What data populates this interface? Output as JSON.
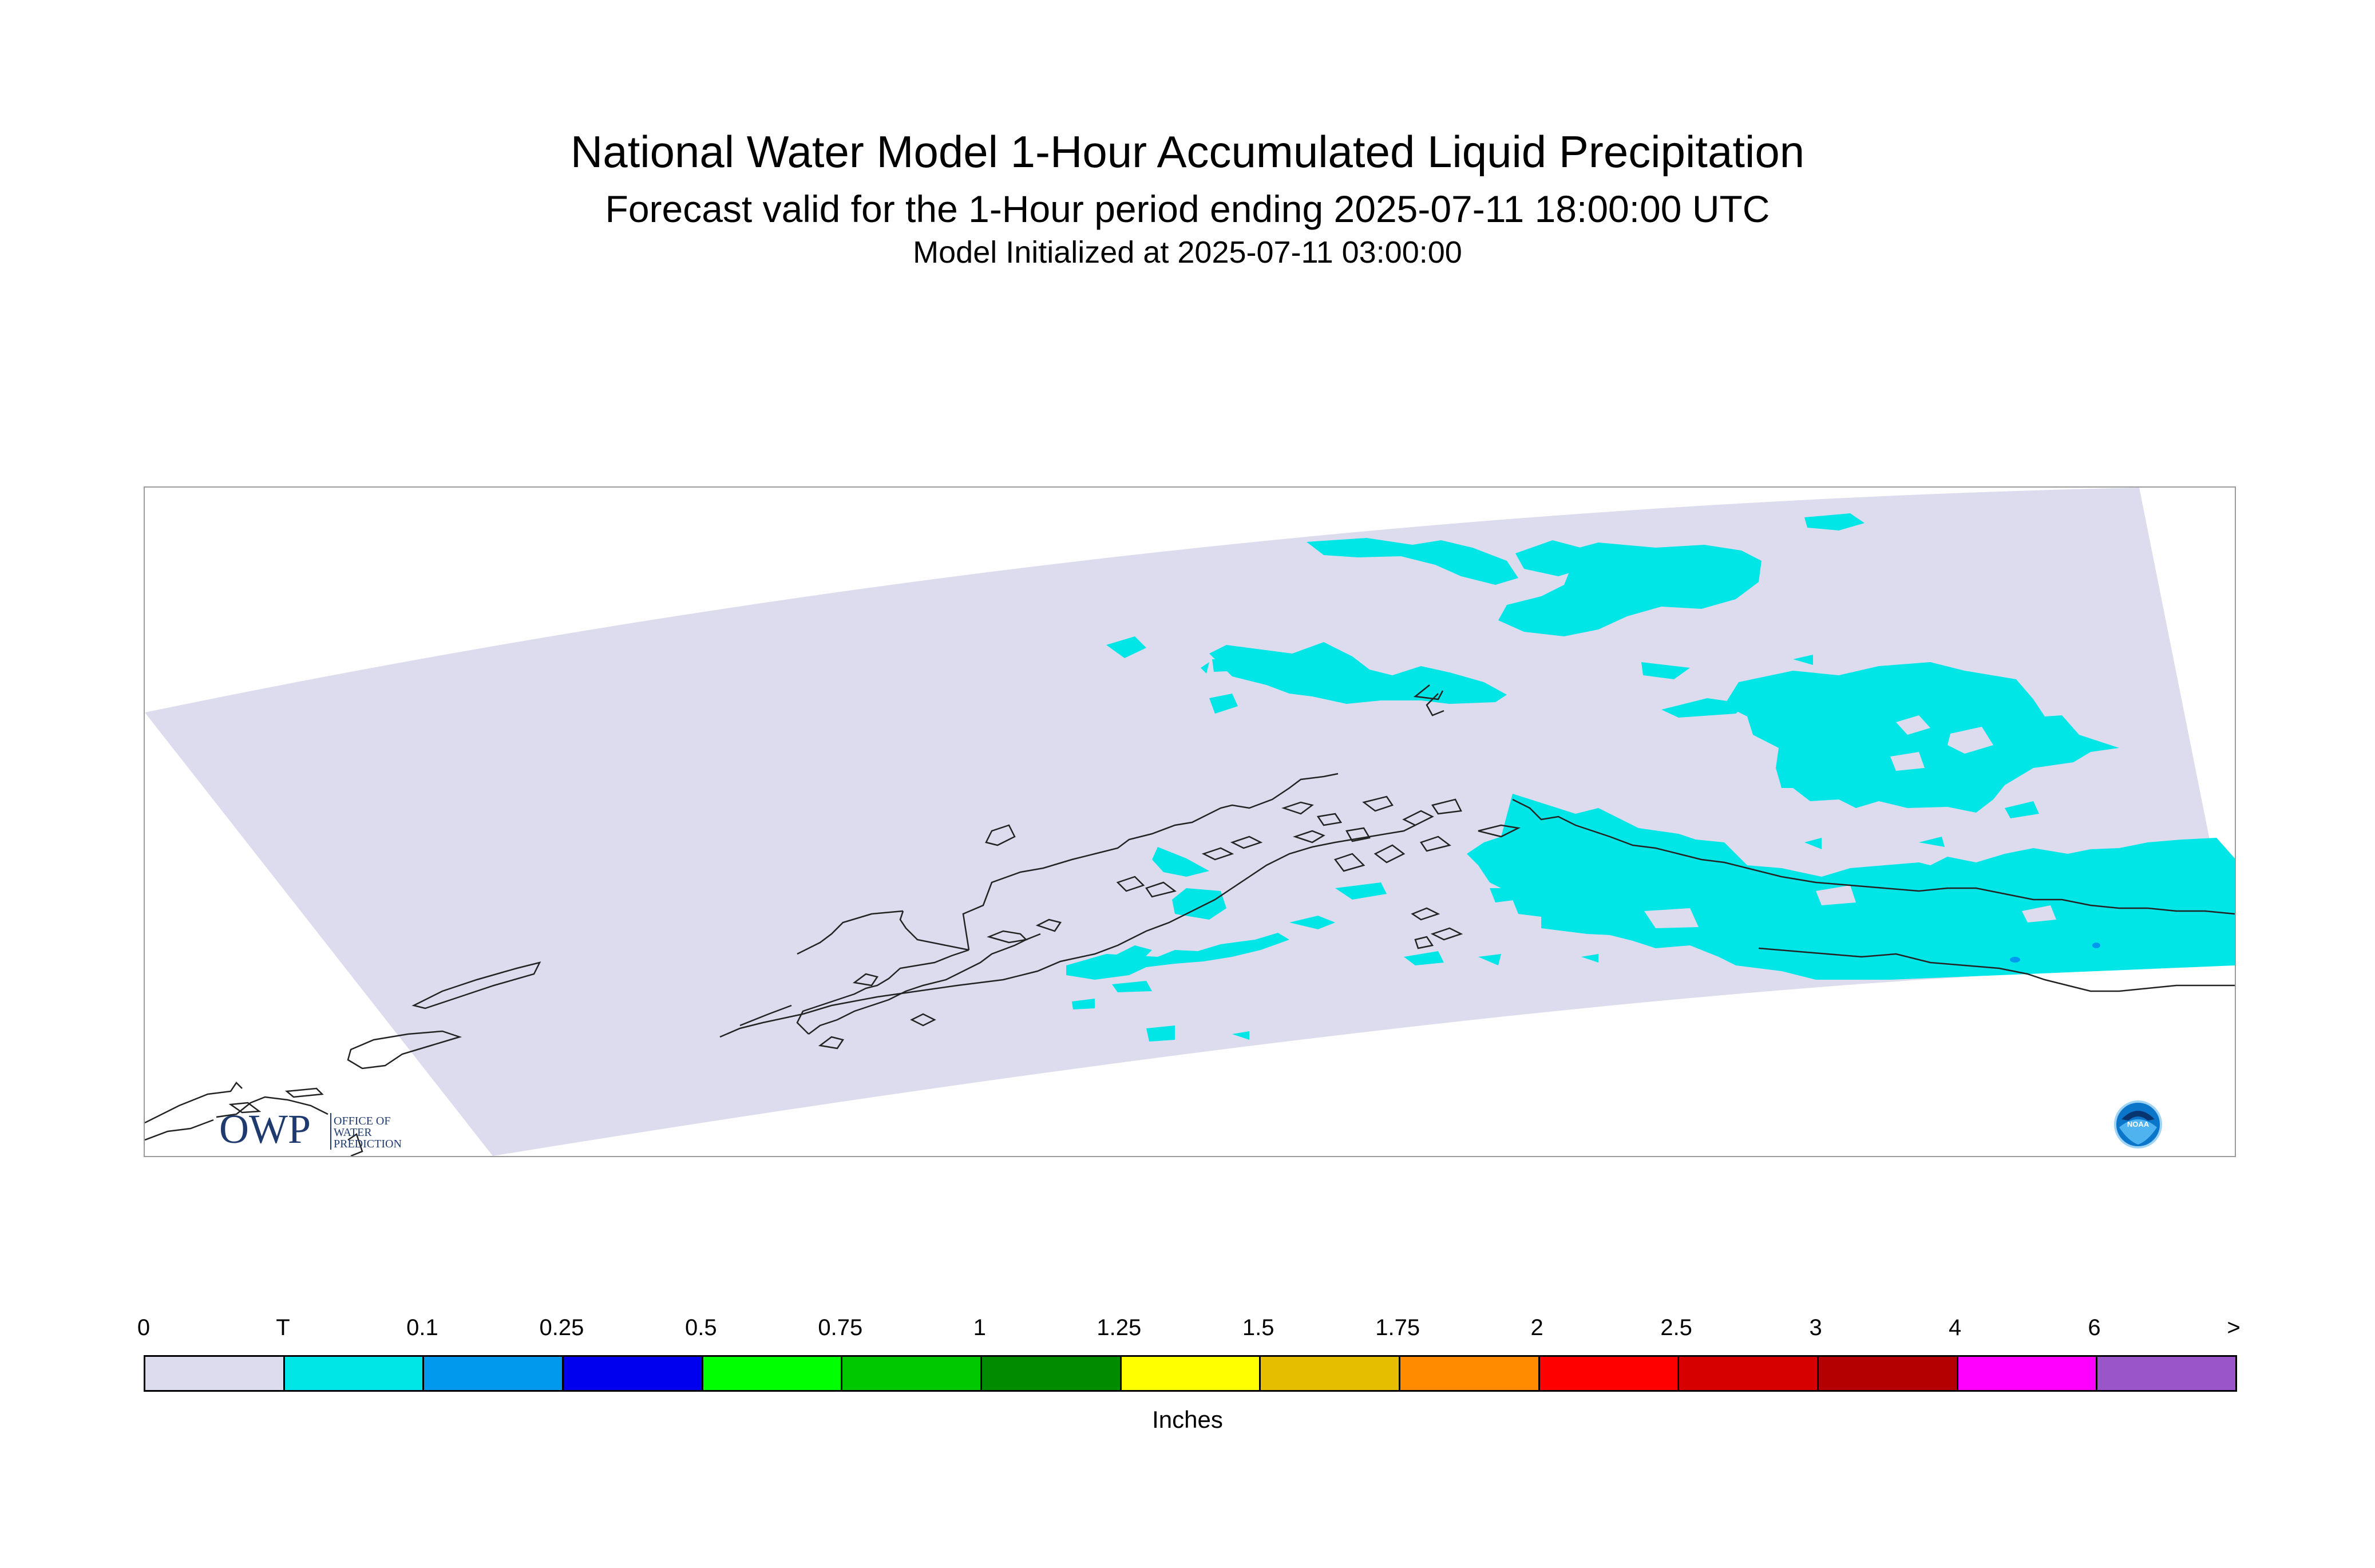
{
  "header": {
    "title": "National Water Model 1-Hour Accumulated Liquid Precipitation",
    "subtitle": "Forecast valid for the 1-Hour period ending 2025-07-11 18:00:00 UTC",
    "init": "Model Initialized at 2025-07-11 03:00:00"
  },
  "map": {
    "domain_fill": "#dcdcee",
    "precip_color": "#00e5e5",
    "heavier_precip_color": "#0099ee",
    "coastline_color": "#222222"
  },
  "logos": {
    "owp": {
      "mark": "OWP",
      "line1": "OFFICE OF",
      "line2": "WATER",
      "line3": "PREDICTION"
    },
    "noaa": {
      "mark": "NOAA"
    }
  },
  "legend": {
    "labels": [
      "0",
      "T",
      "0.1",
      "0.25",
      "0.5",
      "0.75",
      "1",
      "1.25",
      "1.5",
      "1.75",
      "2",
      "2.5",
      "3",
      "4",
      "6",
      ">"
    ],
    "colors": [
      "#dcdcee",
      "#00e5e5",
      "#0099ee",
      "#0000ee",
      "#00ff00",
      "#00c800",
      "#008c00",
      "#ffff00",
      "#e5be00",
      "#ff8c00",
      "#ff0000",
      "#d70000",
      "#b40000",
      "#ff00ff",
      "#9a55c8"
    ],
    "units": "Inches"
  }
}
